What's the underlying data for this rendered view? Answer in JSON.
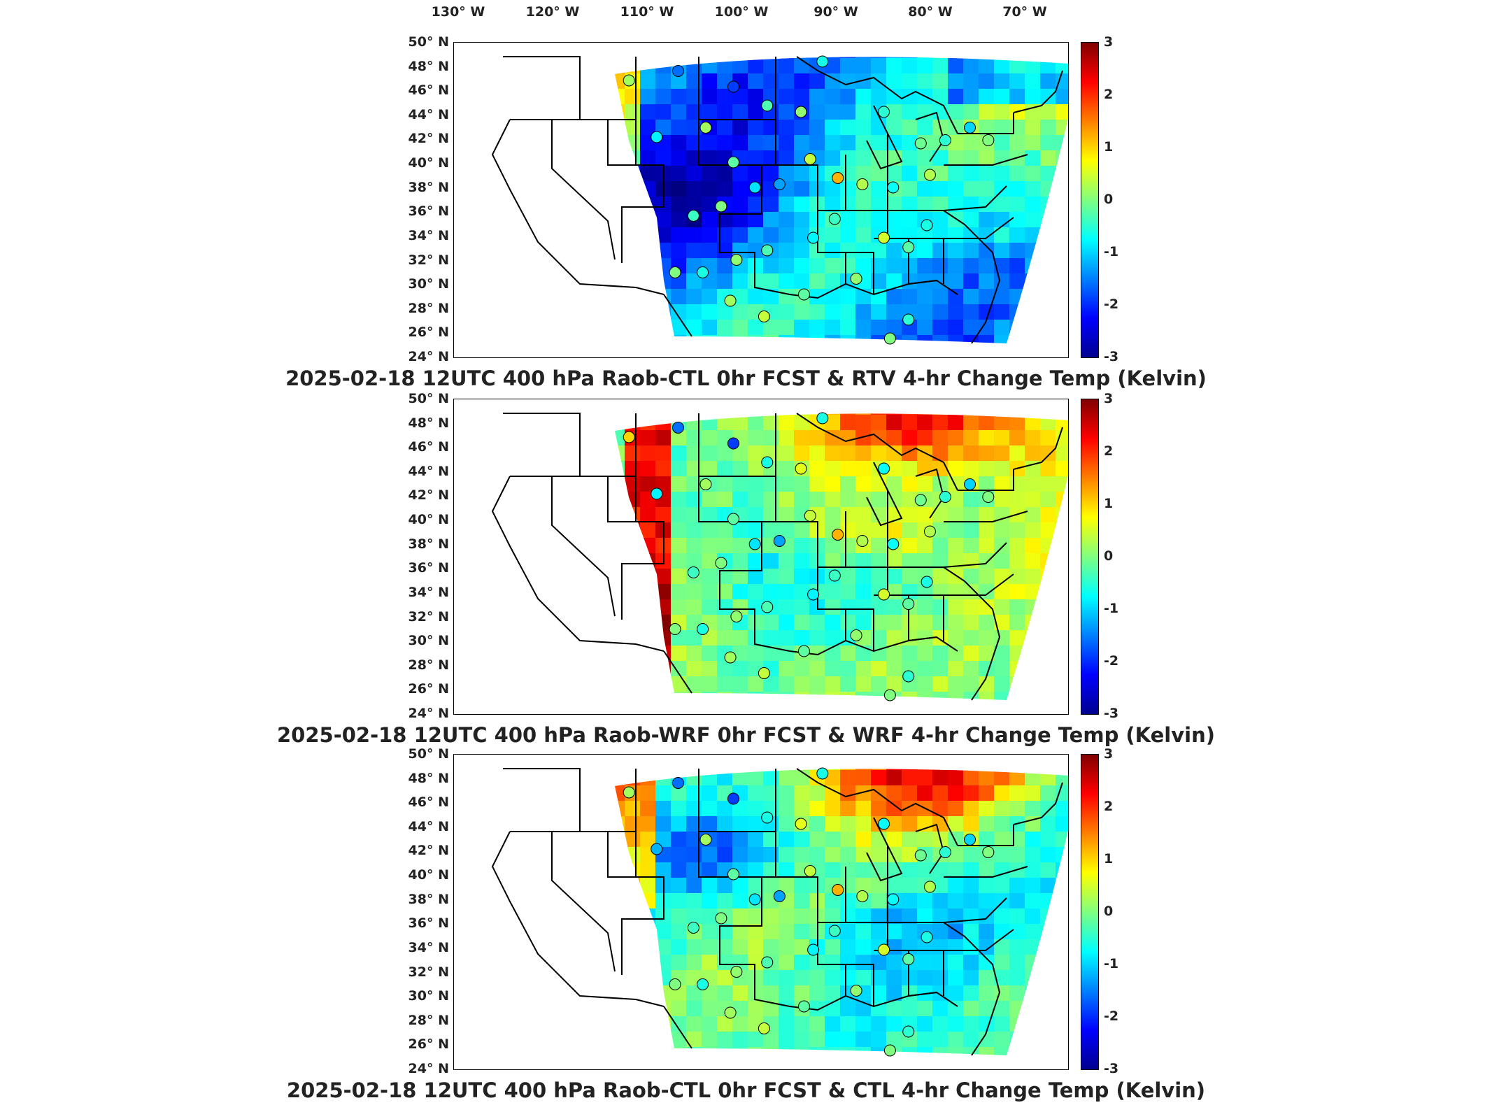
{
  "lon_labels": [
    "130° W",
    "120° W",
    "110° W",
    "100° W",
    "90° W",
    "80° W",
    "70° W"
  ],
  "lat_labels": [
    "50° N",
    "48° N",
    "46° N",
    "44° N",
    "42° N",
    "40° N",
    "38° N",
    "36° N",
    "34° N",
    "32° N",
    "30° N",
    "28° N",
    "26° N",
    "24° N"
  ],
  "colorbar": {
    "ticks": [
      "3",
      "2",
      "1",
      "0",
      "-1",
      "-2",
      "-3"
    ],
    "min": -3,
    "max": 3,
    "colormap": "jet"
  },
  "panels": [
    {
      "title": "2025-02-18 12UTC 400 hPa Raob-CTL 0hr FCST & RTV 4-hr Change Temp (Kelvin)",
      "field_style": "rtv",
      "station_values": [
        0.2,
        -1.6,
        -1.9,
        -0.3,
        0.1,
        -0.5,
        -0.8,
        0.2,
        -0.6,
        -0.2,
        -0.4,
        0.0,
        -0.9,
        -1.3,
        0.4,
        1.2,
        0.3,
        -0.7,
        -0.1,
        -0.5,
        -1.0,
        0.0,
        0.3,
        -0.6,
        -0.2,
        0.5,
        -0.4,
        -0.8,
        -0.3,
        0.1,
        -0.6,
        0.0,
        0.2,
        0.4,
        -0.2,
        0.1,
        -0.5,
        0.0
      ]
    },
    {
      "title": "2025-02-18 12UTC 400 hPa Raob-WRF 0hr FCST & WRF 4-hr Change Temp (Kelvin)",
      "field_style": "wrf",
      "station_values": [
        1.0,
        -1.6,
        -1.9,
        -0.6,
        0.6,
        -0.7,
        -0.8,
        0.2,
        -0.6,
        -0.2,
        -0.4,
        0.0,
        -0.9,
        -1.3,
        0.4,
        1.2,
        0.3,
        -0.7,
        -0.1,
        -0.5,
        -1.0,
        0.0,
        0.3,
        -0.6,
        -0.2,
        0.5,
        -0.4,
        -0.8,
        -0.3,
        0.1,
        -0.6,
        0.0,
        0.2,
        0.4,
        -0.2,
        0.1,
        -0.5,
        0.0
      ]
    },
    {
      "title": "2025-02-18 12UTC 400 hPa Raob-CTL 0hr FCST & CTL 4-hr Change Temp (Kelvin)",
      "field_style": "ctl",
      "station_values": [
        0.2,
        -1.6,
        -1.9,
        -0.6,
        0.6,
        -0.7,
        -1.2,
        0.2,
        -0.6,
        -0.2,
        -0.4,
        0.0,
        -0.9,
        -1.3,
        0.4,
        1.2,
        0.3,
        -0.7,
        -0.1,
        -0.5,
        -1.0,
        0.0,
        0.3,
        -0.6,
        -0.2,
        0.5,
        -0.4,
        -0.8,
        -0.3,
        0.1,
        -0.6,
        0.0,
        0.2,
        0.4,
        -0.2,
        0.1,
        -0.5,
        0.0
      ]
    }
  ]
}
